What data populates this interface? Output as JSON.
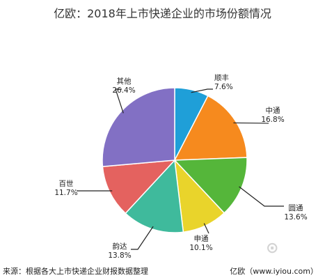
{
  "chart_data": {
    "type": "pie",
    "title": "亿欧：2018年上市快递企业的市场份额情况",
    "slices": [
      {
        "label": "顺丰",
        "value": 7.6,
        "display": "7.6%",
        "color": "#1f9fd8"
      },
      {
        "label": "中通",
        "value": 16.8,
        "display": "16.8%",
        "color": "#f68a1e"
      },
      {
        "label": "圆通",
        "value": 13.6,
        "display": "13.6%",
        "color": "#55b63a"
      },
      {
        "label": "申通",
        "value": 10.1,
        "display": "10.1%",
        "color": "#e9d42b"
      },
      {
        "label": "韵达",
        "value": 13.8,
        "display": "13.8%",
        "color": "#3fba9c"
      },
      {
        "label": "百世",
        "value": 11.7,
        "display": "11.7%",
        "color": "#e4625f"
      },
      {
        "label": "其他",
        "value": 26.4,
        "display": "26.4%",
        "color": "#8270c4"
      }
    ]
  },
  "footer": {
    "source": "来源：根据各大上市快递企业财报数据整理",
    "brand": "亿欧（www.iyiou.com）"
  }
}
